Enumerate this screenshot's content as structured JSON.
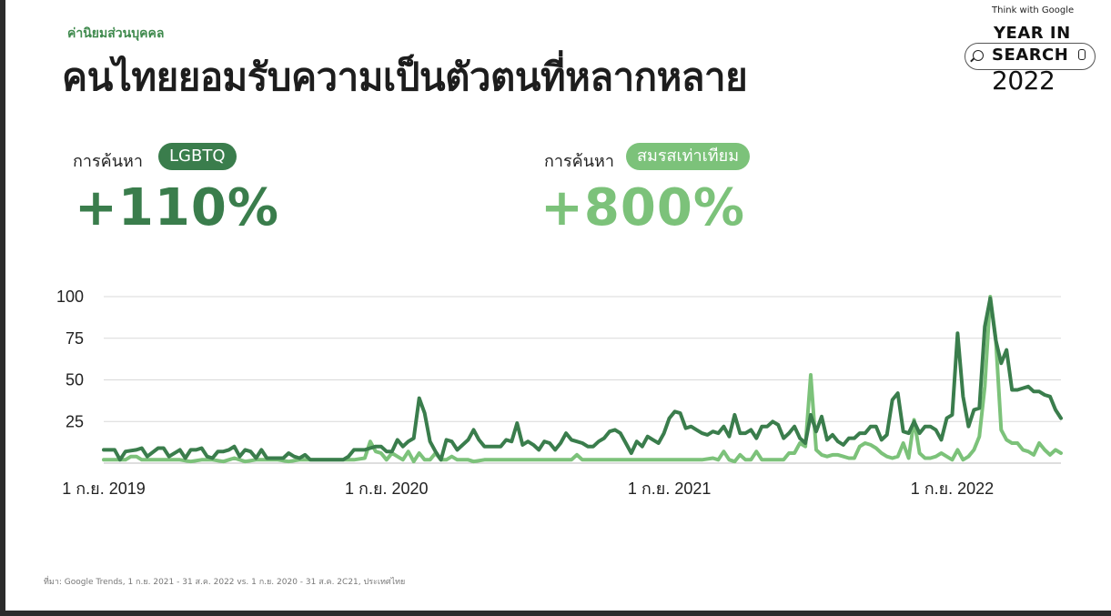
{
  "header": {
    "eyebrow": "ค่านิยมส่วนบุคคล",
    "title": "คนไทยยอมรับความเป็นตัวตนที่หลากหลาย"
  },
  "logo": {
    "think": "Think with Google",
    "line1": "YEAR IN",
    "line2": "SEARCH",
    "line3": "2022"
  },
  "stats": [
    {
      "label": "การค้นหา",
      "badge": "LGBTQ",
      "value": "+110%",
      "color": "#3a7d4c"
    },
    {
      "label": "การค้นหา",
      "badge": "สมรสเท่าเทียม",
      "value": "+800%",
      "color": "#7cc27a"
    }
  ],
  "source": "ที่มา: Google Trends, 1 ก.ย. 2021 - 31 ส.ค. 2022 vs. 1 ก.ย. 2020 - 31 ส.ค. 2C21, ประเทศไทย",
  "chart_data": {
    "type": "line",
    "ylim": [
      0,
      100
    ],
    "yticks": [
      25,
      50,
      75,
      100
    ],
    "xlim": [
      0,
      160
    ],
    "xtick_labels": [
      {
        "x": 0,
        "label": "1 ก.ย. 2019"
      },
      {
        "x": 52,
        "label": "1 ก.ย. 2020"
      },
      {
        "x": 104,
        "label": "1 ก.ย. 2021"
      },
      {
        "x": 156,
        "label": "1 ก.ย. 2022"
      }
    ],
    "grid": true,
    "series": [
      {
        "color": "#3a7d4c",
        "points": [
          [
            0,
            8
          ],
          [
            2,
            8
          ],
          [
            3,
            2
          ],
          [
            4,
            7
          ],
          [
            6,
            8
          ],
          [
            7,
            9
          ],
          [
            8,
            4
          ],
          [
            10,
            9
          ],
          [
            11,
            9
          ],
          [
            12,
            4
          ],
          [
            14,
            8
          ],
          [
            15,
            3
          ],
          [
            16,
            8
          ],
          [
            17,
            8
          ],
          [
            18,
            9
          ],
          [
            19,
            4
          ],
          [
            20,
            3
          ],
          [
            21,
            7
          ],
          [
            22,
            7
          ],
          [
            23,
            8
          ],
          [
            24,
            10
          ],
          [
            25,
            4
          ],
          [
            26,
            8
          ],
          [
            27,
            7
          ],
          [
            28,
            3
          ],
          [
            29,
            8
          ],
          [
            30,
            3
          ],
          [
            31,
            3
          ],
          [
            33,
            3
          ],
          [
            34,
            6
          ],
          [
            35,
            4
          ],
          [
            36,
            3
          ],
          [
            37,
            5
          ],
          [
            38,
            2
          ],
          [
            39,
            2
          ],
          [
            41,
            2
          ],
          [
            43,
            2
          ],
          [
            44,
            2
          ],
          [
            45,
            4
          ],
          [
            46,
            8
          ],
          [
            47,
            8
          ],
          [
            48,
            8
          ],
          [
            49,
            9
          ],
          [
            50,
            10
          ],
          [
            51,
            10
          ],
          [
            52,
            7
          ],
          [
            53,
            7
          ],
          [
            54,
            14
          ],
          [
            55,
            10
          ],
          [
            56,
            13
          ],
          [
            57,
            15
          ],
          [
            58,
            39
          ],
          [
            59,
            30
          ],
          [
            60,
            13
          ],
          [
            61,
            7
          ],
          [
            62,
            2
          ],
          [
            63,
            14
          ],
          [
            64,
            13
          ],
          [
            65,
            8
          ],
          [
            66,
            11
          ],
          [
            67,
            14
          ],
          [
            68,
            20
          ],
          [
            69,
            14
          ],
          [
            70,
            10
          ],
          [
            71,
            10
          ],
          [
            72,
            10
          ],
          [
            73,
            10
          ],
          [
            74,
            14
          ],
          [
            75,
            13
          ],
          [
            76,
            24
          ],
          [
            77,
            11
          ],
          [
            78,
            13
          ],
          [
            79,
            11
          ],
          [
            80,
            8
          ],
          [
            81,
            13
          ],
          [
            82,
            12
          ],
          [
            83,
            8
          ],
          [
            84,
            12
          ],
          [
            85,
            18
          ],
          [
            86,
            14
          ],
          [
            87,
            13
          ],
          [
            88,
            12
          ],
          [
            89,
            10
          ],
          [
            90,
            10
          ],
          [
            91,
            13
          ],
          [
            92,
            15
          ],
          [
            93,
            19
          ],
          [
            94,
            20
          ],
          [
            95,
            18
          ],
          [
            96,
            12
          ],
          [
            97,
            6
          ],
          [
            98,
            13
          ],
          [
            99,
            10
          ],
          [
            100,
            16
          ],
          [
            101,
            14
          ],
          [
            102,
            12
          ],
          [
            103,
            18
          ],
          [
            104,
            27
          ],
          [
            105,
            31
          ],
          [
            106,
            30
          ],
          [
            107,
            21
          ],
          [
            108,
            22
          ],
          [
            109,
            20
          ],
          [
            110,
            18
          ],
          [
            111,
            17
          ],
          [
            112,
            19
          ],
          [
            113,
            18
          ],
          [
            114,
            22
          ],
          [
            115,
            16
          ],
          [
            116,
            29
          ],
          [
            117,
            18
          ],
          [
            118,
            18
          ],
          [
            119,
            20
          ],
          [
            120,
            15
          ],
          [
            121,
            22
          ],
          [
            122,
            22
          ],
          [
            123,
            25
          ],
          [
            124,
            23
          ],
          [
            125,
            15
          ],
          [
            126,
            18
          ],
          [
            127,
            22
          ],
          [
            128,
            15
          ],
          [
            129,
            12
          ],
          [
            130,
            29
          ],
          [
            131,
            19
          ],
          [
            132,
            28
          ],
          [
            133,
            14
          ],
          [
            134,
            17
          ],
          [
            135,
            13
          ],
          [
            136,
            11
          ],
          [
            137,
            15
          ],
          [
            138,
            15
          ],
          [
            139,
            18
          ],
          [
            140,
            18
          ],
          [
            141,
            22
          ],
          [
            142,
            22
          ],
          [
            143,
            14
          ],
          [
            144,
            17
          ],
          [
            145,
            38
          ],
          [
            146,
            42
          ],
          [
            147,
            19
          ],
          [
            148,
            18
          ],
          [
            149,
            25
          ],
          [
            150,
            18
          ],
          [
            151,
            22
          ],
          [
            152,
            22
          ],
          [
            153,
            20
          ],
          [
            154,
            14
          ],
          [
            155,
            27
          ],
          [
            156,
            29
          ],
          [
            157,
            78
          ],
          [
            158,
            40
          ],
          [
            159,
            22
          ],
          [
            160,
            32
          ],
          [
            161,
            33
          ],
          [
            162,
            82
          ],
          [
            163,
            99
          ],
          [
            164,
            74
          ],
          [
            165,
            60
          ],
          [
            166,
            68
          ],
          [
            167,
            44
          ],
          [
            168,
            44
          ],
          [
            169,
            45
          ],
          [
            170,
            46
          ],
          [
            171,
            43
          ],
          [
            172,
            43
          ],
          [
            173,
            41
          ],
          [
            174,
            40
          ],
          [
            175,
            32
          ],
          [
            176,
            27
          ]
        ]
      },
      {
        "color": "#7cc27a",
        "points": [
          [
            0,
            2
          ],
          [
            2,
            2
          ],
          [
            4,
            2
          ],
          [
            5,
            4
          ],
          [
            6,
            4
          ],
          [
            7,
            2
          ],
          [
            8,
            2
          ],
          [
            10,
            2
          ],
          [
            12,
            2
          ],
          [
            14,
            2
          ],
          [
            16,
            1
          ],
          [
            18,
            2
          ],
          [
            20,
            2
          ],
          [
            22,
            1
          ],
          [
            24,
            3
          ],
          [
            26,
            1
          ],
          [
            28,
            2
          ],
          [
            30,
            2
          ],
          [
            32,
            2
          ],
          [
            34,
            1
          ],
          [
            36,
            2
          ],
          [
            38,
            2
          ],
          [
            40,
            2
          ],
          [
            42,
            2
          ],
          [
            44,
            2
          ],
          [
            46,
            2
          ],
          [
            48,
            3
          ],
          [
            49,
            13
          ],
          [
            50,
            7
          ],
          [
            51,
            6
          ],
          [
            52,
            2
          ],
          [
            53,
            6
          ],
          [
            54,
            4
          ],
          [
            55,
            2
          ],
          [
            56,
            7
          ],
          [
            57,
            1
          ],
          [
            58,
            6
          ],
          [
            59,
            2
          ],
          [
            60,
            2
          ],
          [
            61,
            6
          ],
          [
            62,
            2
          ],
          [
            63,
            2
          ],
          [
            64,
            4
          ],
          [
            65,
            2
          ],
          [
            66,
            2
          ],
          [
            67,
            2
          ],
          [
            68,
            1
          ],
          [
            70,
            2
          ],
          [
            72,
            2
          ],
          [
            74,
            2
          ],
          [
            76,
            2
          ],
          [
            78,
            2
          ],
          [
            80,
            2
          ],
          [
            82,
            2
          ],
          [
            84,
            2
          ],
          [
            86,
            2
          ],
          [
            87,
            5
          ],
          [
            88,
            2
          ],
          [
            90,
            2
          ],
          [
            92,
            2
          ],
          [
            94,
            2
          ],
          [
            96,
            2
          ],
          [
            98,
            2
          ],
          [
            100,
            2
          ],
          [
            102,
            2
          ],
          [
            104,
            2
          ],
          [
            106,
            2
          ],
          [
            108,
            2
          ],
          [
            110,
            2
          ],
          [
            112,
            3
          ],
          [
            113,
            2
          ],
          [
            114,
            7
          ],
          [
            115,
            2
          ],
          [
            116,
            1
          ],
          [
            117,
            5
          ],
          [
            118,
            2
          ],
          [
            119,
            2
          ],
          [
            120,
            7
          ],
          [
            121,
            2
          ],
          [
            122,
            2
          ],
          [
            123,
            2
          ],
          [
            124,
            2
          ],
          [
            125,
            2
          ],
          [
            126,
            6
          ],
          [
            127,
            6
          ],
          [
            128,
            12
          ],
          [
            129,
            10
          ],
          [
            130,
            53
          ],
          [
            131,
            8
          ],
          [
            132,
            5
          ],
          [
            133,
            4
          ],
          [
            134,
            5
          ],
          [
            135,
            5
          ],
          [
            136,
            4
          ],
          [
            137,
            3
          ],
          [
            138,
            3
          ],
          [
            139,
            10
          ],
          [
            140,
            12
          ],
          [
            141,
            11
          ],
          [
            142,
            9
          ],
          [
            143,
            6
          ],
          [
            144,
            4
          ],
          [
            145,
            3
          ],
          [
            146,
            4
          ],
          [
            147,
            12
          ],
          [
            148,
            3
          ],
          [
            149,
            26
          ],
          [
            150,
            6
          ],
          [
            151,
            3
          ],
          [
            152,
            3
          ],
          [
            153,
            4
          ],
          [
            154,
            6
          ],
          [
            155,
            4
          ],
          [
            156,
            2
          ],
          [
            157,
            8
          ],
          [
            158,
            2
          ],
          [
            159,
            4
          ],
          [
            160,
            8
          ],
          [
            161,
            16
          ],
          [
            162,
            46
          ],
          [
            163,
            100
          ],
          [
            164,
            75
          ],
          [
            165,
            20
          ],
          [
            166,
            14
          ],
          [
            167,
            12
          ],
          [
            168,
            12
          ],
          [
            169,
            8
          ],
          [
            170,
            7
          ],
          [
            171,
            5
          ],
          [
            172,
            12
          ],
          [
            173,
            8
          ],
          [
            174,
            5
          ],
          [
            175,
            8
          ],
          [
            176,
            6
          ]
        ]
      }
    ]
  }
}
